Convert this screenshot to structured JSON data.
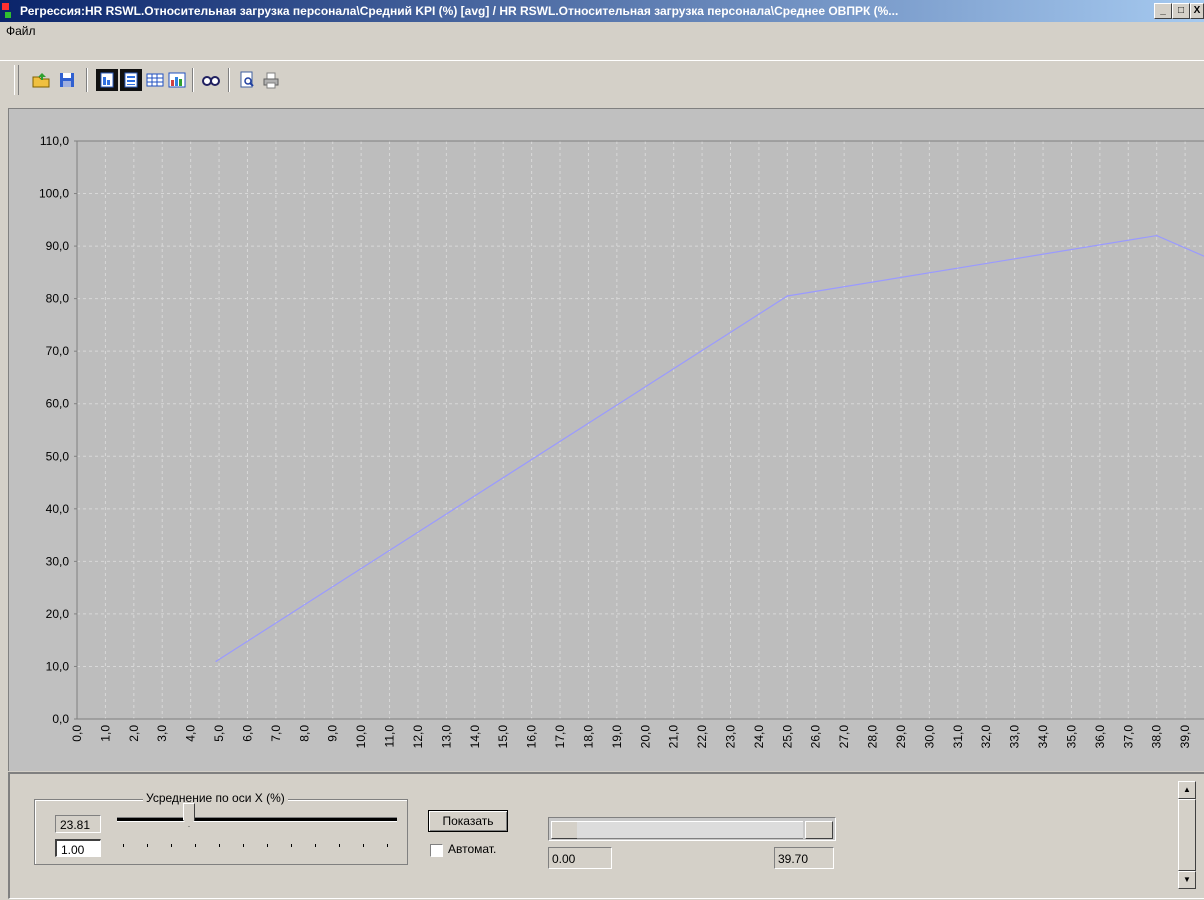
{
  "window": {
    "title": "Регрессия:HR RSWL.Относительная загрузка персонала\\Средний KPI   (%) [avg] / HR RSWL.Относительная загрузка персонала\\Среднее ОВПРК (%..."
  },
  "menu": [
    "Файл"
  ],
  "toolbar": {
    "buttons": [
      "open-icon",
      "save-icon",
      "view-doc-icon",
      "view-report-icon",
      "table-icon",
      "chart-icon",
      "find-icon",
      "preview-icon",
      "print-icon"
    ]
  },
  "chart_data": {
    "type": "line",
    "x": [
      4.9,
      25.0,
      38.0,
      39.7
    ],
    "series": [
      {
        "values": [
          11.0,
          80.5,
          92.0,
          88.0
        ]
      }
    ],
    "xlim": [
      0,
      39.7
    ],
    "ylim": [
      0,
      110
    ],
    "xticks": [
      "0,0",
      "1,0",
      "2,0",
      "3,0",
      "4,0",
      "5,0",
      "6,0",
      "7,0",
      "8,0",
      "9,0",
      "10,0",
      "11,0",
      "12,0",
      "13,0",
      "14,0",
      "15,0",
      "16,0",
      "17,0",
      "18,0",
      "19,0",
      "20,0",
      "21,0",
      "22,0",
      "23,0",
      "24,0",
      "25,0",
      "26,0",
      "27,0",
      "28,0",
      "29,0",
      "30,0",
      "31,0",
      "32,0",
      "33,0",
      "34,0",
      "35,0",
      "36,0",
      "37,0",
      "38,0",
      "39,0"
    ],
    "yticks": [
      "0,0",
      "10,0",
      "20,0",
      "30,0",
      "40,0",
      "50,0",
      "60,0",
      "70,0",
      "80,0",
      "90,0",
      "100,0",
      "110,0"
    ],
    "grid": true,
    "line_color": "#9a9aff"
  },
  "controls": {
    "group_title": "Усреднение по оси X (%)",
    "value_display": "23.81",
    "input_value": "1.00",
    "slider_ticks": 12,
    "show_button": "Показать",
    "auto_label": "Автомат.",
    "auto_checked": false,
    "range_min": "0.00",
    "range_max": "39.70"
  }
}
